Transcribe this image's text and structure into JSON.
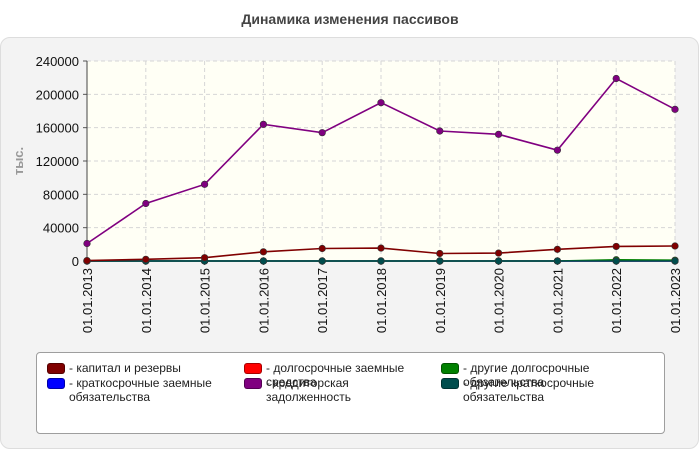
{
  "title": "Динамика изменения пассивов",
  "chart_data": {
    "type": "line",
    "title": "Динамика изменения пассивов",
    "ylabel": "тыс.",
    "xlabel": "",
    "ylim": [
      0,
      240000
    ],
    "yticks": [
      "0",
      "40000",
      "80000",
      "120000",
      "160000",
      "200000",
      "240000"
    ],
    "categories": [
      "01.01.2013",
      "01.01.2014",
      "01.01.2015",
      "01.01.2016",
      "01.01.2017",
      "01.01.2018",
      "01.01.2019",
      "01.01.2020",
      "01.01.2021",
      "01.01.2022",
      "01.01.2023"
    ],
    "grid": true,
    "legend_position": "bottom",
    "series": [
      {
        "name": "капитал и резервы",
        "color": "#800000",
        "values": [
          500,
          2000,
          4000,
          11000,
          15000,
          15500,
          9000,
          9500,
          14000,
          17500,
          18000
        ]
      },
      {
        "name": "долгосрочные заемные средства",
        "color": "#ff0000",
        "values": [
          0,
          0,
          0,
          0,
          0,
          0,
          0,
          0,
          0,
          0,
          0
        ]
      },
      {
        "name": "другие долгосрочные обязательства",
        "color": "#008000",
        "values": [
          0,
          0,
          0,
          0,
          0,
          0,
          0,
          0,
          0,
          1500,
          1000
        ]
      },
      {
        "name": "краткосрочные заемные обязательства",
        "color": "#0000ff",
        "values": [
          0,
          0,
          0,
          0,
          0,
          0,
          0,
          0,
          0,
          0,
          0
        ]
      },
      {
        "name": "кредиторская задолженность",
        "color": "#800080",
        "values": [
          21000,
          69000,
          92000,
          164000,
          154000,
          190000,
          156000,
          152000,
          133000,
          219000,
          182000
        ]
      },
      {
        "name": "другие краткосрочные обязательства",
        "color": "#004d4d",
        "values": [
          0,
          0,
          0,
          0,
          0,
          0,
          0,
          0,
          0,
          0,
          0
        ]
      }
    ]
  }
}
